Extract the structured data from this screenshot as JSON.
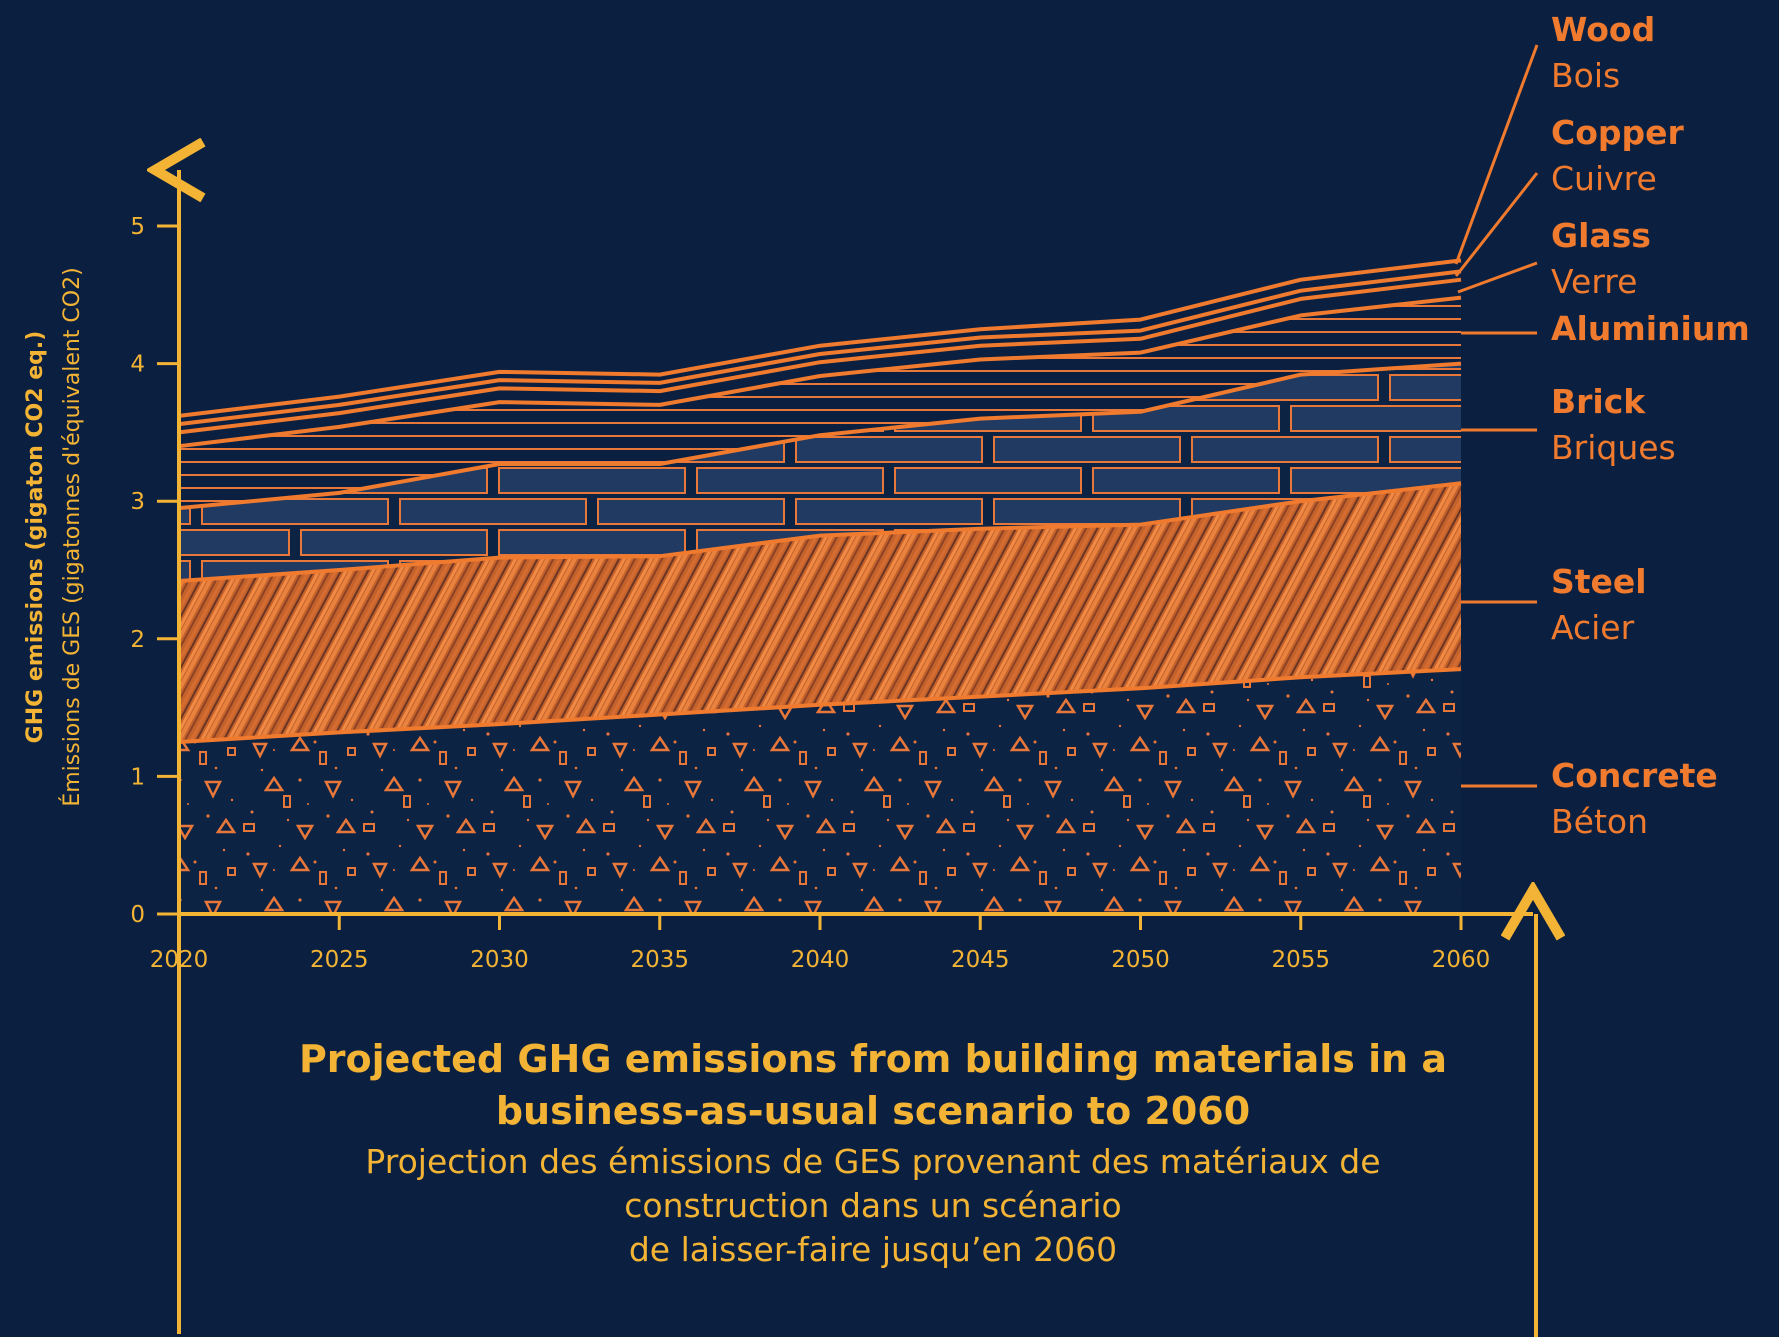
{
  "chart_data": {
    "type": "area",
    "stacked": true,
    "x": [
      2020,
      2025,
      2030,
      2035,
      2040,
      2045,
      2050,
      2055,
      2060
    ],
    "xlim": [
      2020,
      2060
    ],
    "ylim": [
      0,
      5.5
    ],
    "xticks": [
      "2020",
      "2025",
      "2030",
      "2035",
      "2040",
      "2045",
      "2050",
      "2055",
      "2060"
    ],
    "yticks": [
      "0",
      "1",
      "2",
      "3",
      "4",
      "5"
    ],
    "ylabel_en": "GHG emissions (gigaton CO2 eq.)",
    "ylabel_fr": "Émissions de GES (gigatonnes d'équivalent CO2)",
    "title_en": [
      "Projected GHG emissions from building materials in a",
      "business-as-usual scenario to 2060"
    ],
    "title_fr": [
      "Projection des émissions de GES provenant des matériaux de",
      "construction dans un scénario",
      "de laisser-faire jusqu’en 2060"
    ],
    "grid": false,
    "legend_position": "right",
    "series": [
      {
        "key": "concrete",
        "name": "Concrete",
        "name_fr": "Béton",
        "values": [
          1.25,
          1.32,
          1.38,
          1.45,
          1.52,
          1.58,
          1.64,
          1.72,
          1.78
        ]
      },
      {
        "key": "steel",
        "name": "Steel",
        "name_fr": "Acier",
        "values": [
          1.17,
          1.18,
          1.21,
          1.15,
          1.23,
          1.22,
          1.19,
          1.28,
          1.35
        ]
      },
      {
        "key": "brick",
        "name": "Brick",
        "name_fr": "Briques",
        "values": [
          0.53,
          0.56,
          0.68,
          0.67,
          0.73,
          0.8,
          0.82,
          0.92,
          0.87
        ]
      },
      {
        "key": "aluminium",
        "name": "Aluminium",
        "name_fr": "",
        "values": [
          0.45,
          0.48,
          0.45,
          0.43,
          0.43,
          0.43,
          0.43,
          0.43,
          0.48
        ]
      },
      {
        "key": "glass",
        "name": "Glass",
        "name_fr": "Verre",
        "values": [
          0.1,
          0.1,
          0.1,
          0.1,
          0.1,
          0.1,
          0.1,
          0.12,
          0.13
        ]
      },
      {
        "key": "copper",
        "name": "Copper",
        "name_fr": "Cuivre",
        "values": [
          0.06,
          0.06,
          0.06,
          0.06,
          0.06,
          0.06,
          0.06,
          0.06,
          0.06
        ]
      },
      {
        "key": "wood",
        "name": "Wood",
        "name_fr": "Bois",
        "values": [
          0.06,
          0.06,
          0.06,
          0.06,
          0.06,
          0.06,
          0.08,
          0.08,
          0.08
        ]
      }
    ]
  },
  "colors": {
    "background": "#0b2040",
    "axis": "#f3b334",
    "material": "#f07a2e"
  }
}
